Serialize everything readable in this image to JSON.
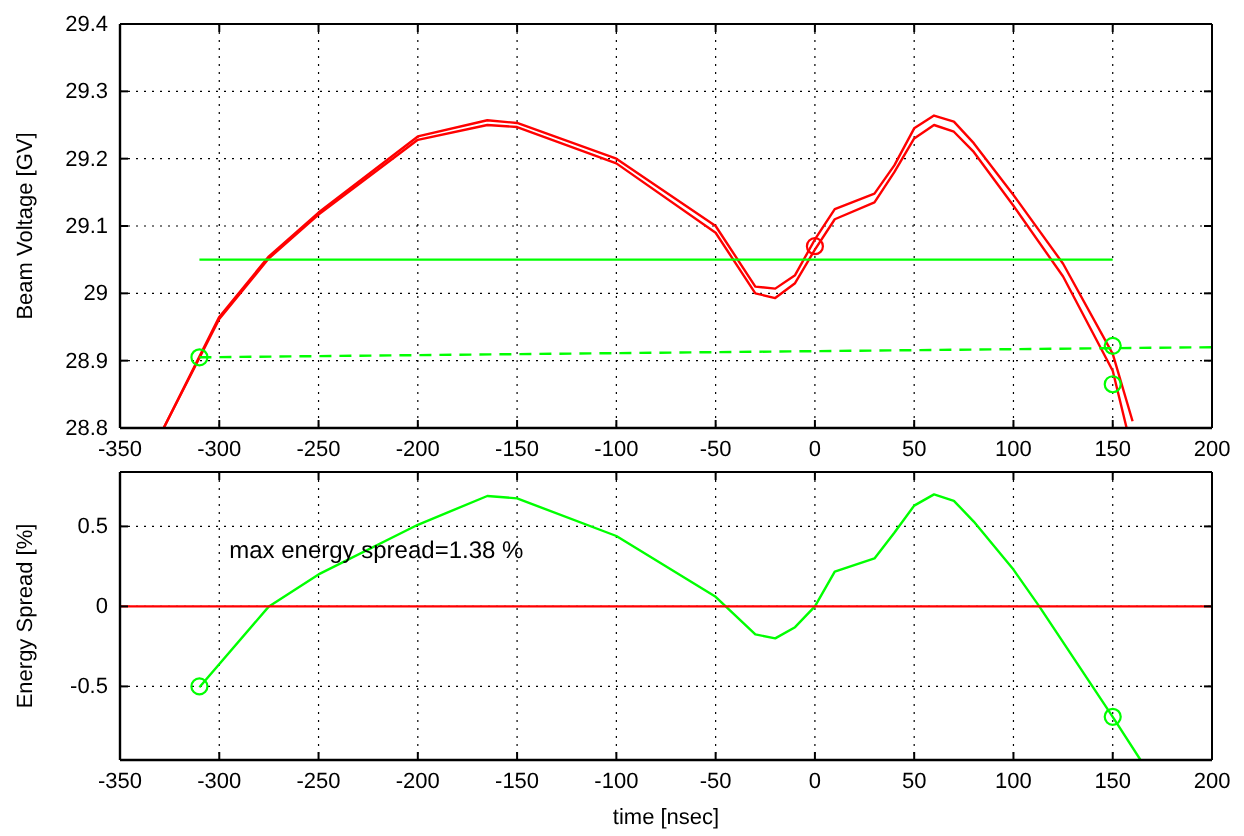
{
  "chart_data": [
    {
      "type": "line",
      "ylabel": "Beam Voltage [GV]",
      "xlim": [
        -350,
        200
      ],
      "ylim": [
        28.8,
        29.4
      ],
      "xticks": [
        -350,
        -300,
        -250,
        -200,
        -150,
        -100,
        -50,
        0,
        50,
        100,
        150,
        200
      ],
      "yticks": [
        28.8,
        28.9,
        29,
        29.1,
        29.2,
        29.3,
        29.4
      ],
      "grid": true,
      "line_style": "solid",
      "series": [
        {
          "color": "#ff0000",
          "x": [
            -328,
            -300,
            -275,
            -250,
            -200,
            -165,
            -150,
            -100,
            -50,
            -30,
            -20,
            -10,
            0,
            10,
            30,
            40,
            50,
            60,
            70,
            80,
            100,
            125,
            150,
            160
          ],
          "values": [
            28.8,
            28.965,
            29.055,
            29.12,
            29.233,
            29.257,
            29.253,
            29.2,
            29.1,
            29.01,
            29.007,
            29.027,
            29.08,
            29.125,
            29.148,
            29.19,
            29.245,
            29.264,
            29.255,
            29.223,
            29.146,
            29.044,
            28.91,
            28.81
          ]
        },
        {
          "color": "#ff0000",
          "x": [
            -328,
            -300,
            -275,
            -250,
            -200,
            -165,
            -150,
            -100,
            -50,
            -30,
            -20,
            -10,
            0,
            10,
            30,
            40,
            50,
            60,
            70,
            80,
            100,
            125,
            150,
            157
          ],
          "values": [
            28.8,
            28.962,
            29.052,
            29.117,
            29.228,
            29.25,
            29.247,
            29.193,
            29.09,
            29.0,
            28.993,
            29.015,
            29.065,
            29.11,
            29.135,
            29.18,
            29.23,
            29.25,
            29.24,
            29.21,
            29.13,
            29.025,
            28.885,
            28.8
          ]
        },
        {
          "color": "#00ff00",
          "x": [
            -310,
            150
          ],
          "values": [
            29.05,
            29.05
          ]
        },
        {
          "color": "#00ff00",
          "line_style": "dashed",
          "x": [
            -310,
            200
          ],
          "values": [
            28.905,
            28.92
          ]
        },
        {
          "type": "scatter",
          "marker": "circle",
          "color": "#ff0000",
          "x": [
            0
          ],
          "values": [
            29.07
          ]
        },
        {
          "type": "scatter",
          "marker": "circle",
          "color": "#00ff00",
          "x": [
            -310,
            150,
            150
          ],
          "values": [
            28.905,
            28.922,
            28.865
          ]
        }
      ]
    },
    {
      "type": "line",
      "xlabel": "time [nsec]",
      "ylabel": "Energy Spread [%]",
      "xlim": [
        -350,
        200
      ],
      "ylim": [
        -0.96,
        0.84
      ],
      "xticks": [
        -350,
        -300,
        -250,
        -200,
        -150,
        -100,
        -50,
        0,
        50,
        100,
        150,
        200
      ],
      "yticks": [
        -0.5,
        0,
        0.5
      ],
      "grid": true,
      "line_style": "solid",
      "annotations": [
        "max energy spread=1.38 %"
      ],
      "series": [
        {
          "color": "#00ff00",
          "x": [
            -310,
            -275,
            -250,
            -200,
            -165,
            -150,
            -100,
            -50,
            -30,
            -20,
            -10,
            0,
            10,
            30,
            40,
            50,
            60,
            70,
            80,
            100,
            113,
            150,
            164
          ],
          "values": [
            -0.505,
            0,
            0.2,
            0.51,
            0.69,
            0.675,
            0.44,
            0.06,
            -0.175,
            -0.2,
            -0.13,
            0,
            0.217,
            0.3,
            0.46,
            0.63,
            0.7,
            0.66,
            0.53,
            0.23,
            0,
            -0.69,
            -0.96
          ]
        },
        {
          "color": "#ff0000",
          "x": [
            -350,
            200
          ],
          "values": [
            0,
            0
          ]
        },
        {
          "type": "scatter",
          "marker": "circle",
          "color": "#00ff00",
          "x": [
            -310,
            150
          ],
          "values": [
            -0.5,
            -0.69
          ]
        }
      ]
    }
  ]
}
